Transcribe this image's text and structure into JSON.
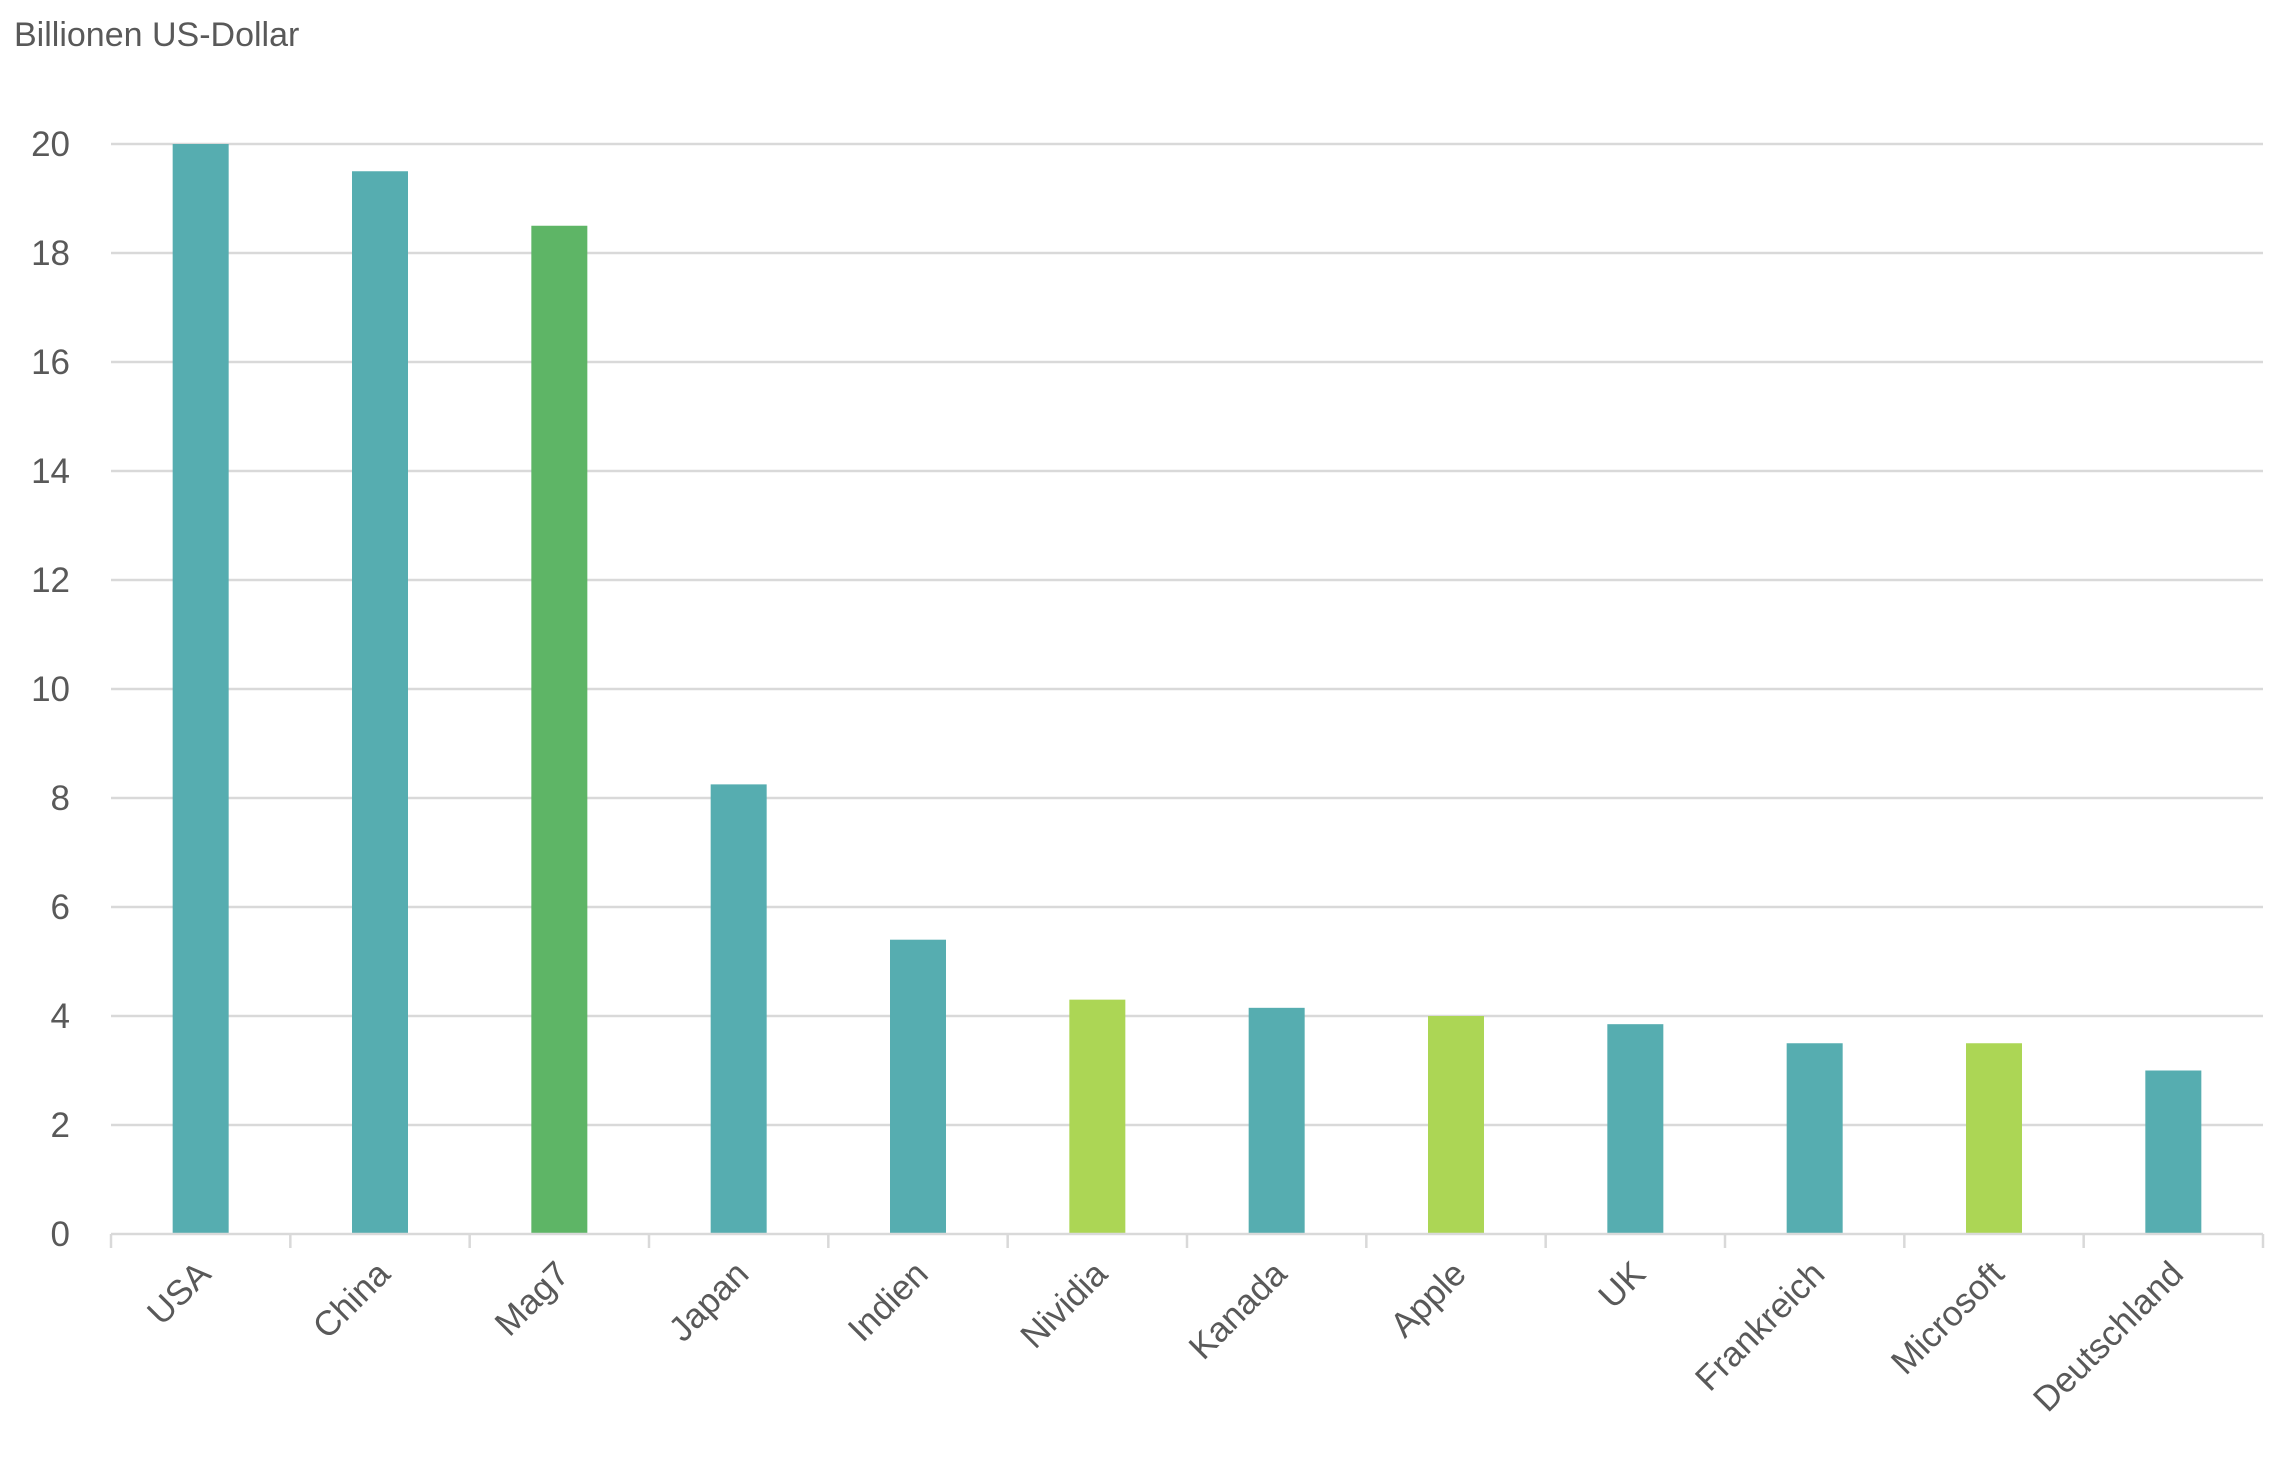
{
  "chart_data": {
    "type": "bar",
    "ylabel": "Billionen US-Dollar",
    "ylim": [
      0,
      20
    ],
    "yticks": [
      0,
      2,
      4,
      6,
      8,
      10,
      12,
      14,
      16,
      18,
      20
    ],
    "grid": true,
    "legend": "none",
    "categories": [
      "USA",
      "China",
      "Mag7",
      "Japan",
      "Indien",
      "Nividia",
      "Kanada",
      "Apple",
      "UK",
      "Frankreich",
      "Microsoft",
      "Deutschland"
    ],
    "values": [
      20.0,
      19.5,
      18.5,
      8.25,
      5.4,
      4.3,
      4.15,
      4.0,
      3.85,
      3.5,
      3.5,
      3.0
    ],
    "bar_colors": [
      "#56adb0",
      "#56adb0",
      "#5eb566",
      "#56adb0",
      "#56adb0",
      "#acd655",
      "#56adb0",
      "#acd655",
      "#56adb0",
      "#56adb0",
      "#acd655",
      "#56adb0"
    ]
  }
}
